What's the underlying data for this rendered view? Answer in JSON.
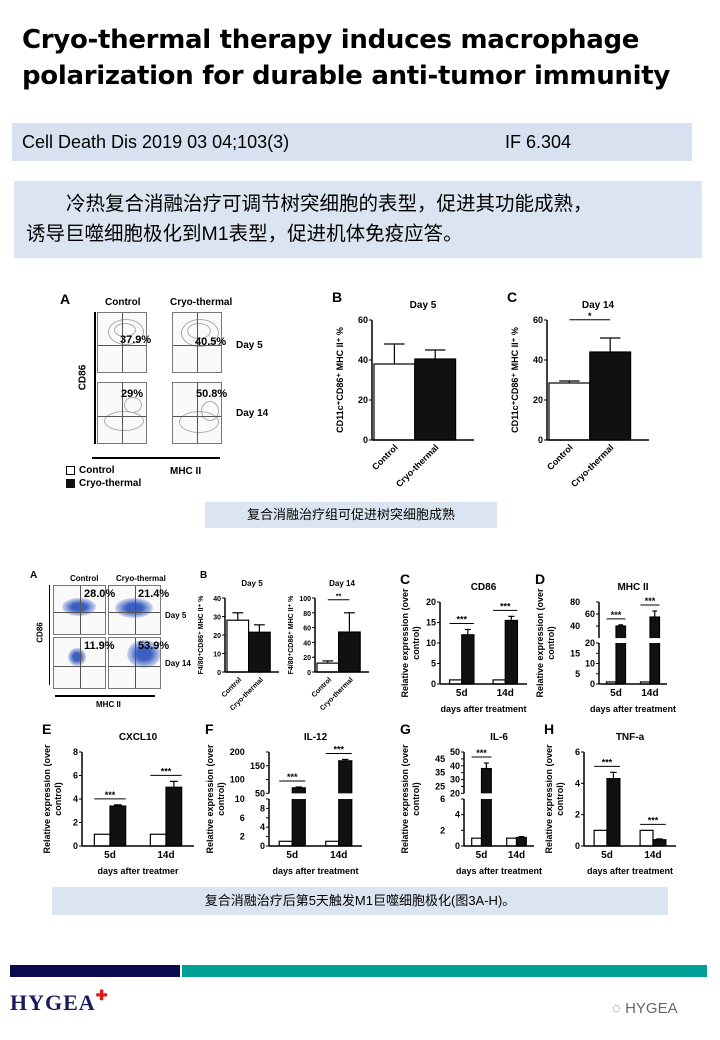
{
  "header": {
    "title_line1": "Cryo-thermal therapy induces macrophage",
    "title_line2": "polarization for durable anti-tumor immunity"
  },
  "citation": {
    "journal": "Cell Death Dis 2019 03 04;103(3)",
    "impact_factor": "IF 6.304"
  },
  "summary": {
    "line1": "冷热复合消融治疗可调节树突细胞的表型，促进其功能成熟，",
    "line2": "诱导巨噬细胞极化到M1表型，促进机体免疫应答。"
  },
  "figure1": {
    "panel_a": {
      "letter": "A",
      "col_labels": [
        "Control",
        "Cryo-thermal"
      ],
      "row_labels": [
        "Day 5",
        "Day 14"
      ],
      "y_axis": "CD86",
      "x_axis": "MHC II",
      "percentages": [
        [
          "37.9%",
          "40.5%"
        ],
        [
          "29%",
          "50.8%"
        ]
      ],
      "legend": [
        {
          "label": "Control",
          "color": "#ffffff"
        },
        {
          "label": "Cryo-thermal",
          "color": "#111111"
        }
      ]
    },
    "caption": "复合消融治疗组可促进树突细胞成熟"
  },
  "figure2": {
    "panel_a": {
      "letter": "A",
      "col_labels": [
        "Control",
        "Cryo-thermal"
      ],
      "row_labels": [
        "Day 5",
        "Day 14"
      ],
      "y_axis": "CD86",
      "x_axis": "MHC II",
      "percentages": [
        [
          "28.0%",
          "21.4%"
        ],
        [
          "11.9%",
          "53.9%"
        ]
      ]
    },
    "panel_b_letter": "B",
    "caption": "复合消融治疗后第5天触发M1巨噬细胞极化(图3A-H)。"
  },
  "colors": {
    "control": "#ffffff",
    "cryo_thermal": "#111111",
    "caption_bg": "#dbe5f1",
    "footer_navy": "#0b0a4e",
    "footer_teal": "#00a096",
    "logo_cross": "#e01b1b"
  },
  "chart_data": [
    {
      "panel": "B",
      "type": "bar",
      "title": "Day 5",
      "ylabel": "CD11c⁺CD86⁺ MHC II⁺ %",
      "ylim": [
        0,
        60
      ],
      "yticks": [
        0,
        20,
        40,
        60
      ],
      "categories": [
        "Control",
        "Cryo-thermal"
      ],
      "values": [
        38,
        40.5
      ],
      "errors": [
        10,
        4.5
      ],
      "significance": []
    },
    {
      "panel": "C",
      "type": "bar",
      "title": "Day 14",
      "ylabel": "CD11c⁺CD86⁺ MHC II⁺ %",
      "ylim": [
        0,
        60
      ],
      "yticks": [
        0,
        20,
        40,
        60
      ],
      "categories": [
        "Control",
        "Cryo-thermal"
      ],
      "values": [
        28.5,
        44
      ],
      "errors": [
        1,
        7
      ],
      "significance": [
        {
          "label": "*"
        }
      ]
    },
    {
      "panel": "",
      "type": "bar",
      "title": "Day 5",
      "ylabel": "F4/80⁺CD86⁺ MHC II⁺ %",
      "ylim": [
        0,
        40
      ],
      "yticks": [
        0,
        10,
        20,
        30,
        40
      ],
      "categories": [
        "Control",
        "Cryo-thermal"
      ],
      "values": [
        28,
        21.5
      ],
      "errors": [
        4,
        4
      ],
      "significance": []
    },
    {
      "panel": "",
      "type": "bar",
      "title": "Day 14",
      "ylabel": "F4/80⁺CD86⁺ MHC II⁺ %",
      "ylim": [
        0,
        100
      ],
      "yticks": [
        0,
        20,
        40,
        60,
        80,
        100
      ],
      "categories": [
        "Control",
        "Cryo-thermal"
      ],
      "values": [
        12,
        54
      ],
      "errors": [
        3,
        26
      ],
      "significance": [
        {
          "label": "**"
        }
      ]
    },
    {
      "panel": "C",
      "type": "bar",
      "title": "CD86",
      "ylabel": "Relative expression (over control)",
      "xlabel": "days after treatment",
      "ylim": [
        0,
        20
      ],
      "yticks": [
        0,
        5,
        10,
        15,
        20
      ],
      "categories": [
        "5d",
        "14d"
      ],
      "series": [
        {
          "name": "Control",
          "values": [
            1,
            1
          ],
          "errors": [
            0,
            0
          ]
        },
        {
          "name": "Cryo-thermal",
          "values": [
            12,
            15.5
          ],
          "errors": [
            1.3,
            1
          ]
        }
      ],
      "significance": [
        {
          "label": "***"
        },
        {
          "label": "***"
        }
      ]
    },
    {
      "panel": "D",
      "type": "bar",
      "title": "MHC II",
      "ylabel": "Relative expression (over control)",
      "xlabel": "days after treatment",
      "axis_break": {
        "lower": [
          0,
          20
        ],
        "upper": [
          20,
          80
        ]
      },
      "yticks_lower": [
        0,
        5,
        10,
        15,
        20
      ],
      "yticks_upper": [
        20,
        40,
        60,
        80
      ],
      "categories": [
        "5d",
        "14d"
      ],
      "series": [
        {
          "name": "Control",
          "values": [
            1,
            1
          ],
          "errors": [
            0,
            0
          ]
        },
        {
          "name": "Cryo-thermal",
          "values": [
            40,
            55
          ],
          "errors": [
            2,
            10
          ]
        }
      ],
      "significance": [
        {
          "label": "***"
        },
        {
          "label": "***"
        }
      ]
    },
    {
      "panel": "E",
      "type": "bar",
      "title": "CXCL10",
      "ylabel": "Relative expression (over control)",
      "xlabel": "days after treatmer",
      "ylim": [
        0,
        8
      ],
      "yticks": [
        0,
        2,
        4,
        6,
        8
      ],
      "categories": [
        "5d",
        "14d"
      ],
      "series": [
        {
          "name": "Control",
          "values": [
            1,
            1
          ],
          "errors": [
            0,
            0
          ]
        },
        {
          "name": "Cryo-thermal",
          "values": [
            3.4,
            5
          ],
          "errors": [
            0.1,
            0.5
          ]
        }
      ],
      "significance": [
        {
          "label": "***"
        },
        {
          "label": "***"
        }
      ]
    },
    {
      "panel": "F",
      "type": "bar",
      "title": "IL-12",
      "ylabel": "Relative expression (over control)",
      "xlabel": "days after treatment",
      "axis_break": {
        "lower": [
          0,
          10
        ],
        "upper": [
          50,
          200
        ]
      },
      "yticks_lower": [
        0,
        2,
        4,
        6,
        8,
        10
      ],
      "yticks_upper": [
        50,
        100,
        150,
        200
      ],
      "categories": [
        "5d",
        "14d"
      ],
      "series": [
        {
          "name": "Control",
          "values": [
            1,
            1
          ],
          "errors": [
            0,
            0
          ]
        },
        {
          "name": "Cryo-thermal",
          "values": [
            70,
            168
          ],
          "errors": [
            3,
            5
          ]
        }
      ],
      "significance": [
        {
          "label": "***"
        },
        {
          "label": "***"
        }
      ]
    },
    {
      "panel": "G",
      "type": "bar",
      "title": "IL-6",
      "ylabel": "Relative expression (over control)",
      "xlabel": "days after treatment",
      "axis_break": {
        "lower": [
          0,
          6
        ],
        "upper": [
          20,
          50
        ]
      },
      "yticks_lower": [
        0,
        2,
        4,
        6
      ],
      "yticks_upper": [
        20,
        25,
        30,
        35,
        40,
        45,
        50
      ],
      "categories": [
        "5d",
        "14d"
      ],
      "series": [
        {
          "name": "Control",
          "values": [
            1,
            1
          ],
          "errors": [
            0,
            0
          ]
        },
        {
          "name": "Cryo-thermal",
          "values": [
            38,
            1.1
          ],
          "errors": [
            4,
            0.1
          ]
        }
      ],
      "significance": [
        {
          "label": "***"
        }
      ]
    },
    {
      "panel": "H",
      "type": "bar",
      "title": "TNF-a",
      "ylabel": "Relative expression (over control)",
      "xlabel": "days after treatment",
      "ylim": [
        0,
        6
      ],
      "yticks": [
        0,
        2,
        4,
        6
      ],
      "categories": [
        "5d",
        "14d"
      ],
      "series": [
        {
          "name": "Control",
          "values": [
            1,
            1
          ],
          "errors": [
            0,
            0
          ]
        },
        {
          "name": "Cryo-thermal",
          "values": [
            4.3,
            0.4
          ],
          "errors": [
            0.4,
            0.05
          ]
        }
      ],
      "significance": [
        {
          "label": "***"
        },
        {
          "label": "***"
        }
      ]
    }
  ],
  "footer": {
    "logo": "HYGEA",
    "watermark": "HYGEA"
  }
}
